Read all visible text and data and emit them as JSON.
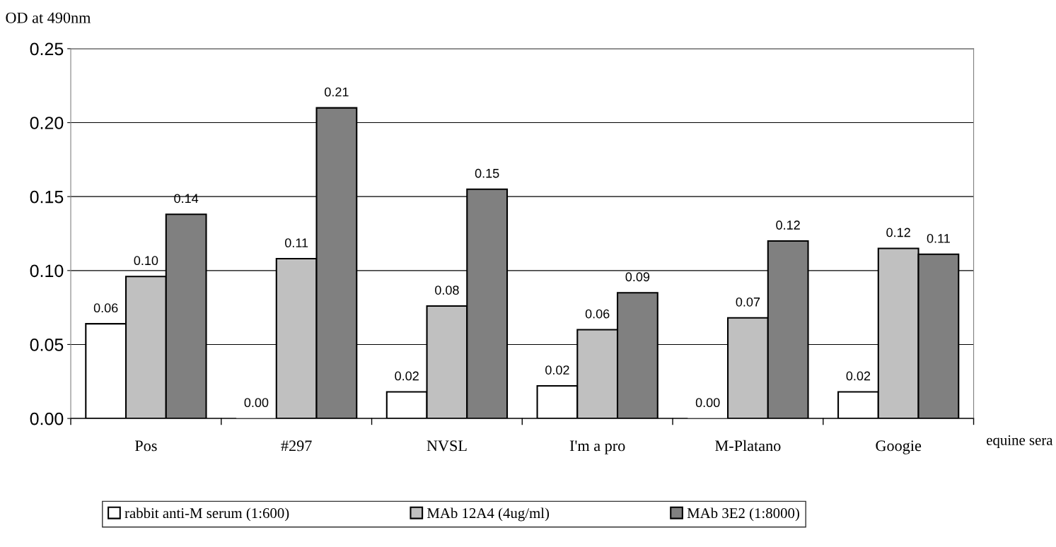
{
  "chart_data": {
    "type": "bar",
    "ylabel": "OD at 490nm",
    "xlabel": "equine sera",
    "categories": [
      "Pos",
      "#297",
      "NVSL",
      "I'm a pro",
      "M-Platano",
      "Googie"
    ],
    "series": [
      {
        "name": "rabbit anti-M serum (1:600)",
        "color": "#ffffff",
        "values": [
          0.064,
          0,
          0.018,
          0.022,
          0,
          0.018
        ],
        "value_labels": [
          "0.06",
          "0.00",
          "0.02",
          "0.02",
          "0.00",
          "0.02"
        ]
      },
      {
        "name": "MAb 12A4 (4ug/ml)",
        "color": "#c0c0c0",
        "values": [
          0.096,
          0.108,
          0.076,
          0.06,
          0.068,
          0.115
        ],
        "value_labels": [
          "0.10",
          "0.11",
          "0.08",
          "0.06",
          "0.07",
          "0.12"
        ]
      },
      {
        "name": "MAb 3E2 (1:8000)",
        "color": "#808080",
        "values": [
          0.138,
          0.21,
          0.155,
          0.085,
          0.12,
          0.111
        ],
        "value_labels": [
          "0.14",
          "0.21",
          "0.15",
          "0.09",
          "0.12",
          "0.11"
        ]
      }
    ],
    "ylim": [
      0,
      0.25
    ],
    "yticks": [
      {
        "value": 0,
        "label": "0.00"
      },
      {
        "value": 0.05,
        "label": "0.05"
      },
      {
        "value": 0.1,
        "label": "0.10"
      },
      {
        "value": 0.15,
        "label": "0.15"
      },
      {
        "value": 0.2,
        "label": "0.20"
      },
      {
        "value": 0.25,
        "label": "0.25"
      }
    ],
    "grid": "y",
    "legend": "bottom"
  }
}
